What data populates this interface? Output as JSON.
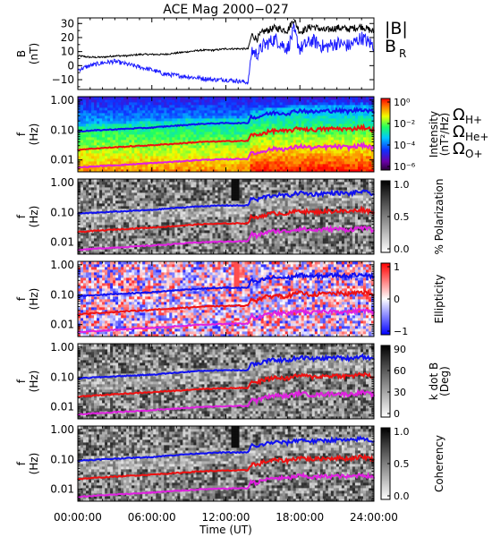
{
  "title": "ACE Mag 2000−027",
  "xaxis": {
    "label": "Time (UT)",
    "ticks": [
      "00:00:00",
      "06:00:00",
      "12:00:00",
      "18:00:00",
      "24:00:00"
    ],
    "hours": [
      0,
      6,
      12,
      18,
      24
    ]
  },
  "legend": {
    "b_total": "|B|",
    "b_r": "B",
    "b_r_sub": "R",
    "omega": "Ω",
    "h_sub": "H+",
    "he_sub": "He+",
    "o_sub": "O+"
  },
  "colors": {
    "b_total": "#000000",
    "b_r": "#1a1aff",
    "h_plus": "#1010f0",
    "he_plus": "#ee1111",
    "o_plus": "#e020e0"
  },
  "panels": [
    {
      "id": "b",
      "ylabel": "B",
      "yunit": "(nT)",
      "yticks": [
        "30",
        "20",
        "10",
        "0",
        "−10"
      ],
      "ylim": [
        -17,
        34
      ]
    },
    {
      "id": "intensity",
      "ylabel": "f",
      "yunit": "(Hz)",
      "yticks": [
        "1.00",
        "0.10",
        "0.01"
      ],
      "bar_label": "Intensity",
      "bar_unit": "(nT²/Hz)",
      "bar_ticks": [
        "10⁰",
        "10⁻²",
        "10⁻⁴",
        "10⁻⁶"
      ],
      "colormap": "rainbow"
    },
    {
      "id": "polarization",
      "ylabel": "f",
      "yunit": "(Hz)",
      "yticks": [
        "1.00",
        "0.10",
        "0.01"
      ],
      "bar_label": "% Polarization",
      "bar_ticks": [
        "1.0",
        "0.5",
        "0.0"
      ],
      "colormap": "gray"
    },
    {
      "id": "ellipticity",
      "ylabel": "f",
      "yunit": "(Hz)",
      "yticks": [
        "1.00",
        "0.10",
        "0.01"
      ],
      "bar_label": "Ellipticity",
      "bar_ticks": [
        "1",
        "0",
        "−1"
      ],
      "colormap": "bwr"
    },
    {
      "id": "kdotb",
      "ylabel": "f",
      "yunit": "(Hz)",
      "yticks": [
        "1.00",
        "0.10",
        "0.01"
      ],
      "bar_label": "k dot B",
      "bar_unit": "(Deg)",
      "bar_ticks": [
        "90",
        "60",
        "30",
        "0"
      ],
      "colormap": "gray"
    },
    {
      "id": "coherency",
      "ylabel": "f",
      "yunit": "(Hz)",
      "yticks": [
        "1.00",
        "0.10",
        "0.01"
      ],
      "bar_label": "Coherency",
      "bar_ticks": [
        "1.0",
        "0.5",
        "0.0"
      ],
      "colormap": "gray"
    }
  ],
  "chart_data": {
    "type": "line",
    "title": "ACE Mag 2000−027",
    "xlabel": "Time (UT)",
    "xlim": [
      0,
      24
    ],
    "magnetic_field": {
      "ylabel": "B (nT)",
      "ylim": [
        -17,
        34
      ],
      "series": [
        {
          "name": "|B|",
          "x": [
            0,
            1,
            2,
            3,
            4,
            5,
            6,
            7,
            8,
            9,
            10,
            11,
            12,
            13,
            13.8,
            14.1,
            14.5,
            15,
            16,
            17,
            17.5,
            18,
            19,
            20,
            21,
            22,
            23,
            24
          ],
          "values": [
            7,
            6,
            6,
            7,
            7,
            8,
            8,
            8,
            9,
            10,
            11,
            11,
            12,
            12,
            12,
            22,
            19,
            24,
            27,
            25,
            33,
            24,
            28,
            25,
            27,
            26,
            28,
            24
          ]
        },
        {
          "name": "B_R",
          "x": [
            0,
            1,
            2,
            3,
            4,
            5,
            6,
            7,
            8,
            9,
            10,
            11,
            12,
            13,
            13.8,
            14.1,
            14.5,
            15,
            16,
            17,
            17.5,
            18,
            19,
            20,
            21,
            22,
            23,
            24
          ],
          "values": [
            -3,
            0,
            2,
            3,
            1,
            -1,
            -3,
            -6,
            -7,
            -8,
            -9,
            -10,
            -10,
            -11,
            -12,
            11,
            8,
            14,
            19,
            12,
            25,
            12,
            18,
            13,
            16,
            14,
            20,
            14
          ]
        }
      ]
    },
    "gyrofrequency_lines": {
      "ylabel": "f (Hz)",
      "yscale": "log",
      "ylim": [
        0.004,
        1.3
      ],
      "x": [
        0,
        2,
        4,
        6,
        8,
        10,
        12,
        13,
        13.8,
        14.1,
        14.5,
        15,
        16,
        17,
        18,
        19,
        20,
        21,
        22,
        23,
        24
      ],
      "series": [
        {
          "name": "ΩH+",
          "values": [
            0.09,
            0.1,
            0.11,
            0.12,
            0.14,
            0.16,
            0.17,
            0.17,
            0.17,
            0.3,
            0.25,
            0.32,
            0.38,
            0.36,
            0.46,
            0.4,
            0.43,
            0.45,
            0.42,
            0.5,
            0.4
          ]
        },
        {
          "name": "ΩHe+",
          "values": [
            0.022,
            0.025,
            0.028,
            0.031,
            0.035,
            0.04,
            0.042,
            0.043,
            0.043,
            0.075,
            0.063,
            0.08,
            0.095,
            0.09,
            0.115,
            0.1,
            0.108,
            0.112,
            0.105,
            0.125,
            0.1
          ]
        },
        {
          "name": "ΩO+",
          "values": [
            0.0056,
            0.0063,
            0.007,
            0.0078,
            0.0088,
            0.01,
            0.0105,
            0.0108,
            0.0108,
            0.019,
            0.016,
            0.02,
            0.024,
            0.023,
            0.029,
            0.025,
            0.027,
            0.028,
            0.026,
            0.031,
            0.025
          ]
        }
      ]
    }
  }
}
